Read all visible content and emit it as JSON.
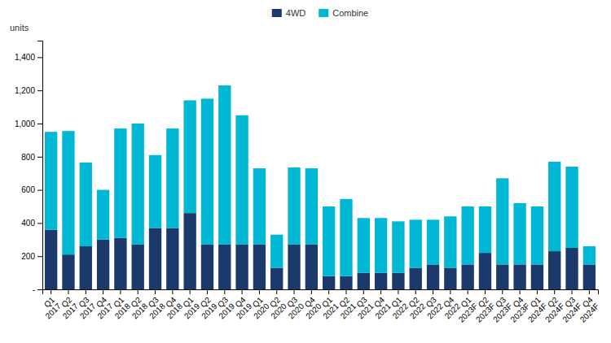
{
  "chart_data": {
    "type": "bar",
    "stacked": true,
    "ylabel": "units",
    "categories": [
      "Q1\n2017",
      "Q2\n2017",
      "Q3\n2017",
      "Q4\n2017",
      "Q1\n2018",
      "Q2\n2018",
      "Q3\n2018",
      "Q4\n2018",
      "Q1\n2019",
      "Q2\n2019",
      "Q3\n2019",
      "Q4\n2019",
      "Q1\n2020",
      "Q2\n2020",
      "Q3\n2020",
      "Q4\n2020",
      "Q1\n2021",
      "Q2\n2021",
      "Q3\n2021",
      "Q4\n2021",
      "Q1\n2022",
      "Q2\n2022",
      "Q3\n2022",
      "Q4\n2022",
      "Q1\n2023F",
      "Q2\n2023F",
      "Q3\n2023F",
      "Q4\n2023F",
      "Q1\n2024F",
      "Q2\n2024F",
      "Q3\n2024F",
      "Q4\n2024F"
    ],
    "series": [
      {
        "name": "4WD",
        "color": "#1b3a6b",
        "values": [
          360,
          210,
          260,
          300,
          310,
          270,
          370,
          370,
          460,
          270,
          270,
          270,
          270,
          130,
          270,
          270,
          80,
          80,
          100,
          100,
          100,
          130,
          150,
          130,
          150,
          220,
          150,
          150,
          150,
          230,
          250,
          150
        ]
      },
      {
        "name": "Combine",
        "color": "#00b8d4",
        "values": [
          590,
          745,
          505,
          300,
          660,
          730,
          440,
          600,
          680,
          880,
          960,
          780,
          460,
          200,
          465,
          460,
          420,
          465,
          330,
          330,
          310,
          290,
          270,
          310,
          350,
          280,
          520,
          370,
          350,
          540,
          490,
          110
        ]
      }
    ],
    "ylim": [
      0,
      1500
    ],
    "yticks": [
      {
        "value": 0,
        "label": "-"
      },
      200,
      400,
      600,
      800,
      {
        "value": 1000,
        "label": "1,000"
      },
      {
        "value": 1200,
        "label": "1,200"
      },
      {
        "value": 1400,
        "label": "1,400"
      }
    ],
    "grid": false,
    "legend": "top"
  }
}
